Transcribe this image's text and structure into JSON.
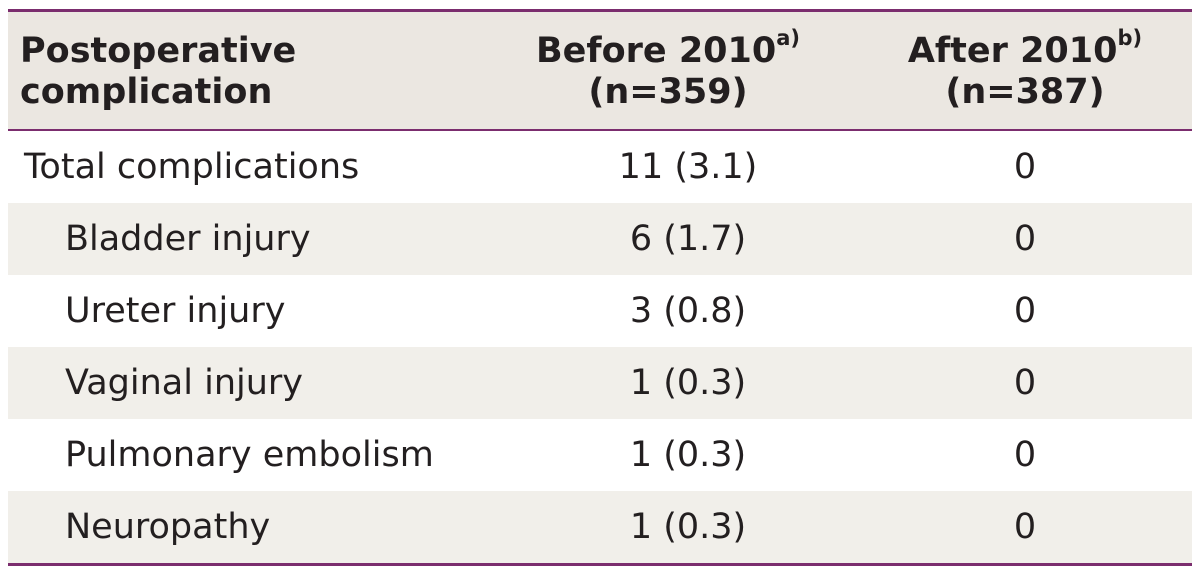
{
  "table": {
    "header": {
      "col1_line1": "Postoperative",
      "col1_line2": "complication",
      "col2_line1": "Before 2010",
      "col2_sup": "a)",
      "col2_line2": "(n=359)",
      "col3_line1": "After 2010",
      "col3_sup": "b)",
      "col3_line2": "(n=387)"
    },
    "rows": [
      {
        "label": "Total complications",
        "before": "11 (3.1)",
        "after": "0"
      },
      {
        "label": "Bladder injury",
        "before": "6 (1.7)",
        "after": "0"
      },
      {
        "label": "Ureter injury",
        "before": "3 (0.8)",
        "after": "0"
      },
      {
        "label": "Vaginal injury",
        "before": "1 (0.3)",
        "after": "0"
      },
      {
        "label": "Pulmonary embolism",
        "before": "1 (0.3)",
        "after": "0"
      },
      {
        "label": "Neuropathy",
        "before": "1 (0.3)",
        "after": "0"
      }
    ]
  },
  "colors": {
    "rule": "#7b2d6e",
    "header_bg": "#ebe7e1",
    "stripe_bg": "#f1efea",
    "text": "#231f20"
  }
}
